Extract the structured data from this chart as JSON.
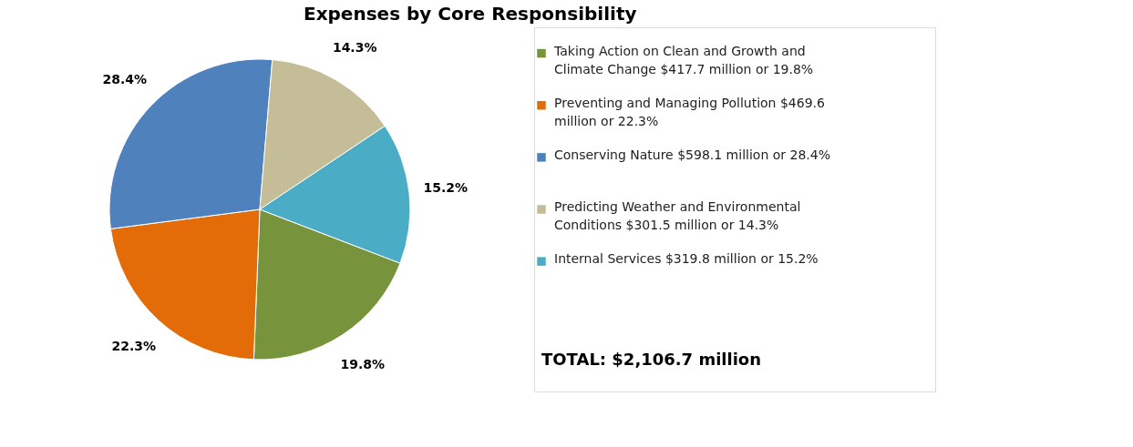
{
  "chart_data": {
    "type": "pie",
    "title": "Expenses by Core Responsibility",
    "categories": [
      "Taking Action on Clean and Growth and Climate Change $417.7 million or 19.8%",
      "Preventing and Managing Pollution $469.6 million or 22.3%",
      "Conserving Nature $598.1 million or 28.4%",
      "Predicting Weather and Environmental Conditions $301.5 million or 14.3%",
      "Internal Services $319.8 million or 15.2%"
    ],
    "values": [
      19.8,
      22.3,
      28.4,
      14.3,
      15.2
    ],
    "colors": [
      "#77933c",
      "#e36c09",
      "#4f81bd",
      "#c4bd97",
      "#4bacc6"
    ],
    "value_labels": [
      "19.8%",
      "22.3%",
      "28.4%",
      "14.3%",
      "15.2%"
    ],
    "legend": "right",
    "annotations": [
      "TOTAL: $2,106.7 million"
    ]
  }
}
